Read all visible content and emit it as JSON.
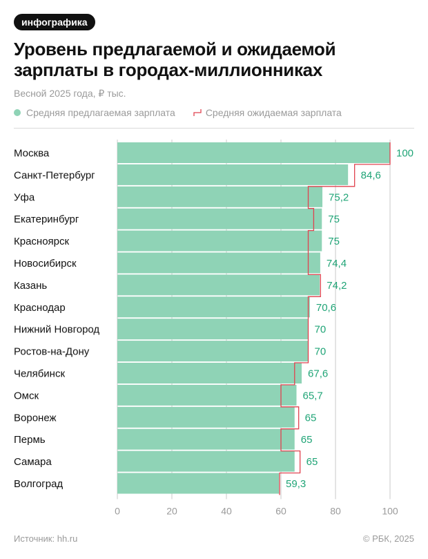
{
  "badge": "инфографика",
  "title_lines": [
    "Уровень предлагаемой и ожидаемой",
    "зарплаты в городах-миллионниках"
  ],
  "subtitle": "Весной 2025 года, ₽ тыс.",
  "legend": {
    "offered": "Средняя предлагаемая зарплата",
    "expected": "Средняя ожидаемая зарплата"
  },
  "footer": {
    "source": "Источник: hh.ru",
    "copyright": "© РБК, 2025"
  },
  "colors": {
    "bar": "#8fd3b6",
    "expected_line": "#e0424f",
    "value_label": "#1fa476",
    "axis_text": "#9a9a9a",
    "grid": "#c8c8c8"
  },
  "chart_data": {
    "type": "bar",
    "orientation": "horizontal",
    "categories": [
      "Москва",
      "Санкт-Петербург",
      "Уфа",
      "Екатеринбург",
      "Красноярск",
      "Новосибирск",
      "Казань",
      "Краснодар",
      "Нижний Новгород",
      "Ростов-на-Дону",
      "Челябинск",
      "Омск",
      "Воронеж",
      "Пермь",
      "Самара",
      "Волгоград"
    ],
    "series": [
      {
        "name": "Средняя предлагаемая зарплата",
        "values": [
          100,
          84.6,
          75.2,
          75,
          75,
          74.4,
          74.2,
          70.6,
          70,
          70,
          67.6,
          65.7,
          65,
          65,
          65,
          59.3
        ],
        "labels": [
          "100",
          "84,6",
          "75,2",
          "75",
          "75",
          "74,4",
          "74,2",
          "70,6",
          "70",
          "70",
          "67,6",
          "65,7",
          "65",
          "65",
          "65",
          "59,3"
        ]
      },
      {
        "name": "Средняя ожидаемая зарплата",
        "style": "step-line",
        "values": [
          100,
          87,
          70,
          72,
          70,
          70,
          74.5,
          70,
          70,
          70,
          65,
          60,
          66.5,
          60,
          67,
          59.5
        ]
      }
    ],
    "xlim": [
      0,
      100
    ],
    "xticks": [
      "0",
      "20",
      "40",
      "60",
      "80",
      "100"
    ],
    "grid": true
  }
}
